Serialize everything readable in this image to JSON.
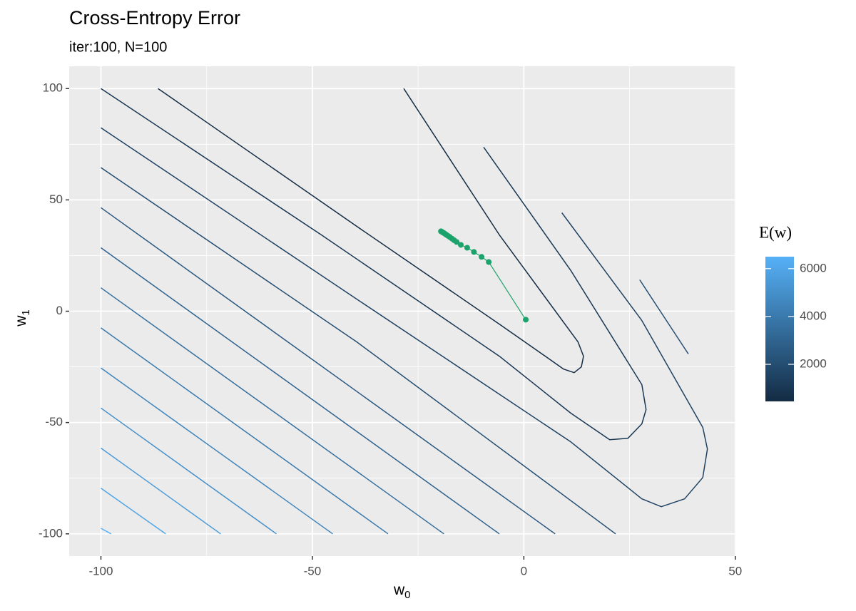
{
  "chart_data": {
    "type": "contour",
    "title": "Cross-Entropy Error",
    "subtitle": "iter:100, N=100",
    "x_label": {
      "text": "w",
      "sub": "0"
    },
    "y_label": {
      "text": "w",
      "sub": "1"
    },
    "xlim": [
      -107.5,
      50.2
    ],
    "ylim": [
      -110,
      110
    ],
    "xticks": [
      -100,
      -50,
      0,
      50
    ],
    "yticks": [
      -100,
      -50,
      0,
      50,
      100
    ],
    "xminor": [
      -75,
      -25,
      25
    ],
    "yminor": [
      -75,
      -25,
      25,
      75
    ],
    "grid": true,
    "legend": {
      "title": "E(w)",
      "limits": [
        450,
        6500
      ],
      "ticks": [
        2000,
        4000,
        6000
      ],
      "low_color": "#132B43",
      "high_color": "#56B1F7"
    },
    "contours": [
      {
        "level": 500,
        "x": [
          -86.5,
          -39.5,
          -5.8,
          4.3,
          9.4,
          11.9,
          13.6,
          14.1,
          12.8,
          -5.8,
          -28.4
        ],
        "y": [
          100,
          38.1,
          -5.8,
          -19.2,
          -26.0,
          -27.6,
          -25.0,
          -20.2,
          -13.8,
          34.3,
          100
        ]
      },
      {
        "level": 1000,
        "x": [
          -100,
          -47.9,
          -5.8,
          11.1,
          20.3,
          24.6,
          27.9,
          28.9,
          27.9,
          11.1,
          -9.5
        ],
        "y": [
          100,
          34.3,
          -20.2,
          -45.8,
          -57.7,
          -57.1,
          -50.6,
          -44.2,
          -33.0,
          18.3,
          73.7
        ]
      },
      {
        "level": 1500,
        "x": [
          -100,
          -39.5,
          11.1,
          27.9,
          32.5,
          38.0,
          42.3,
          43.4,
          42.3,
          27.9,
          9.0
        ],
        "y": [
          82.4,
          5.4,
          -58.7,
          -84.3,
          -87.8,
          -84.3,
          -74.7,
          -61.9,
          -52.2,
          -4.2,
          44.2
        ]
      },
      {
        "level": 2000,
        "x": [
          -100,
          -39.5,
          21.7,
          null,
          27.4,
          38.9
        ],
        "y": [
          64.5,
          -13.8,
          -100,
          null,
          14.1,
          -19.2
        ]
      },
      {
        "level": 2500,
        "x": [
          -100,
          7.4
        ],
        "y": [
          46.5,
          -100
        ]
      },
      {
        "level": 3000,
        "x": [
          -100,
          -5.8
        ],
        "y": [
          28.5,
          -100
        ]
      },
      {
        "level": 3500,
        "x": [
          -100,
          -18.9
        ],
        "y": [
          10.5,
          -100
        ]
      },
      {
        "level": 4000,
        "x": [
          -100,
          -32.1
        ],
        "y": [
          -7.5,
          -100
        ]
      },
      {
        "level": 4500,
        "x": [
          -100,
          -45.2
        ],
        "y": [
          -25.5,
          -100
        ]
      },
      {
        "level": 5000,
        "x": [
          -100,
          -58.5
        ],
        "y": [
          -43.5,
          -100
        ]
      },
      {
        "level": 5500,
        "x": [
          -100,
          -71.7
        ],
        "y": [
          -61.5,
          -100
        ]
      },
      {
        "level": 6000,
        "x": [
          -100,
          -84.7
        ],
        "y": [
          -79.5,
          -100
        ]
      },
      {
        "level": 6500,
        "x": [
          -100,
          -97.6
        ],
        "y": [
          -97.5,
          -100
        ]
      }
    ],
    "path": {
      "color": "#1BA36B",
      "x": [
        0.45,
        -8.3,
        -10.0,
        -11.8,
        -13.4,
        -14.9,
        -15.9,
        -16.5,
        -17.0,
        -17.5,
        -17.9,
        -18.3,
        -18.6,
        -18.9,
        -19.2,
        -19.4,
        -19.6
      ],
      "y": [
        -3.8,
        22.1,
        24.4,
        26.6,
        28.5,
        29.8,
        31.1,
        31.9,
        32.6,
        33.3,
        33.8,
        34.3,
        34.7,
        35.1,
        35.4,
        35.7,
        35.9
      ]
    }
  }
}
